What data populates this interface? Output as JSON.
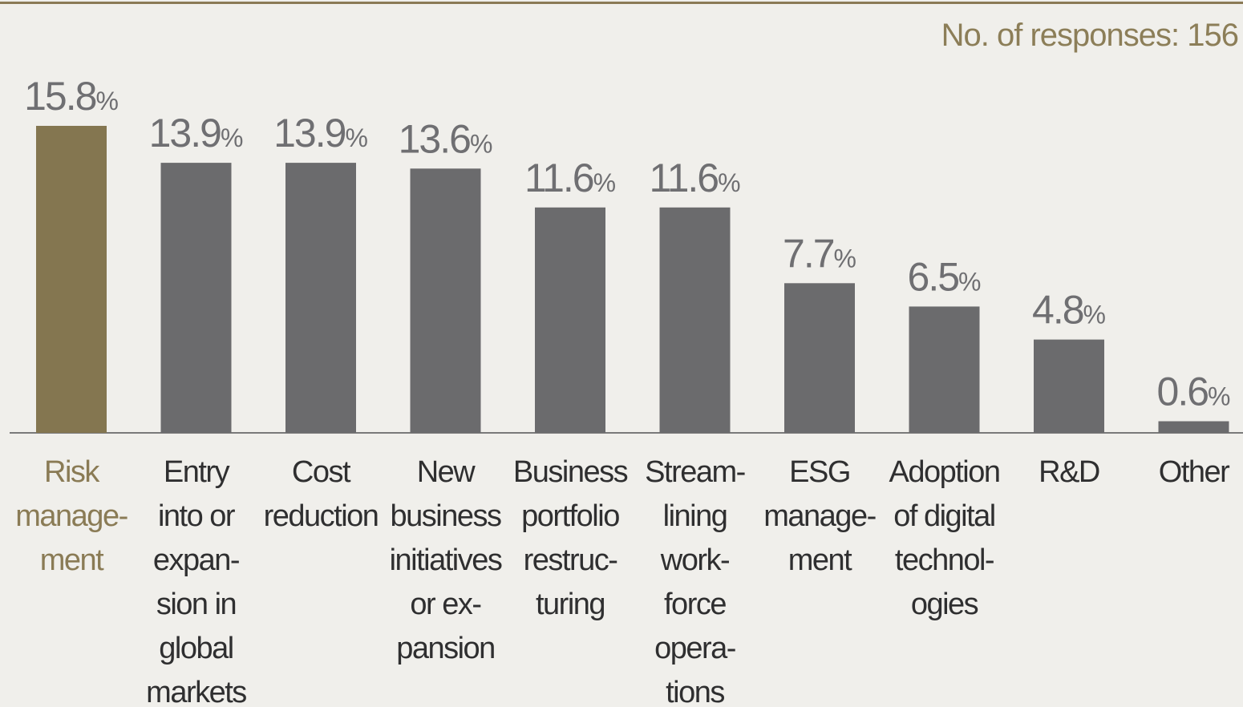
{
  "header": {
    "responses": "No. of responses: 156"
  },
  "colors": {
    "highlight": "#847650",
    "bar": "#6b6b6d",
    "value_text": "#6f6f72",
    "category_text_highlight": "#8a7b55",
    "category_text": "#2f2f30",
    "rule": "#8a7a55"
  },
  "chart_data": {
    "type": "bar",
    "unit": "%",
    "categories": [
      [
        "Risk",
        "manage-",
        "ment"
      ],
      [
        "Entry",
        "into or",
        "expan-",
        "sion in",
        "global",
        "markets"
      ],
      [
        "Cost",
        "reduction"
      ],
      [
        "New",
        "business",
        "initiatives",
        "or ex-",
        "pansion"
      ],
      [
        "Business",
        "portfolio",
        "restruc-",
        "turing"
      ],
      [
        "Stream-",
        "lining",
        "work-",
        "force",
        "opera-",
        "tions"
      ],
      [
        "ESG",
        "manage-",
        "ment"
      ],
      [
        "Adoption",
        "of digital",
        "technol-",
        "ogies"
      ],
      [
        "R&D"
      ],
      [
        "Other"
      ]
    ],
    "values": [
      15.8,
      13.9,
      13.9,
      13.6,
      11.6,
      11.6,
      7.7,
      6.5,
      4.8,
      0.6
    ],
    "value_labels": [
      "15.8",
      "13.9",
      "13.9",
      "13.6",
      "11.6",
      "11.6",
      "7.7",
      "6.5",
      "4.8",
      "0.6"
    ],
    "highlight_index": 0,
    "ylim": [
      0,
      15.8
    ]
  }
}
